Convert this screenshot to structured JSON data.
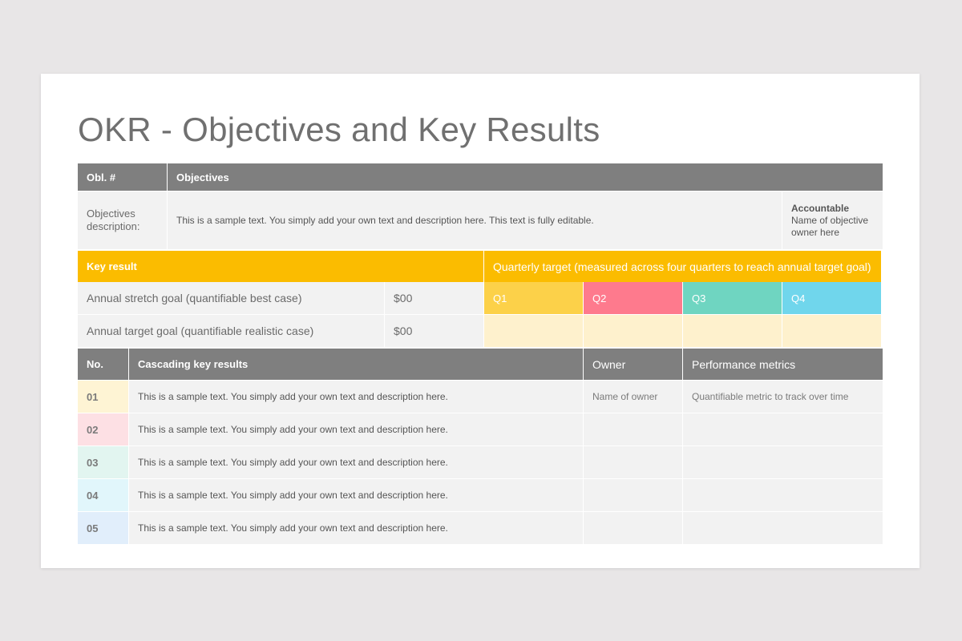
{
  "title": "OKR - Objectives and Key Results",
  "objectives": {
    "col_num_label": "Obl. #",
    "col_objectives_label": "Objectives",
    "description_label": "Objectives description:",
    "description_text": "This is a sample text. You simply add your own text and description here. This text is fully editable.",
    "accountable_title": "Accountable",
    "accountable_text": "Name of objective owner here"
  },
  "key_results": {
    "header_label": "Key result",
    "quarterly_label": "Quarterly target (measured across four quarters to reach annual target goal)",
    "quarters": [
      "Q1",
      "Q2",
      "Q3",
      "Q4"
    ],
    "rows": [
      {
        "label": "Annual stretch goal (quantifiable best case)",
        "value": "$00"
      },
      {
        "label": "Annual target goal (quantifiable realistic case)",
        "value": "$00"
      }
    ]
  },
  "cascading": {
    "col_no": "No.",
    "col_results": "Cascading key results",
    "col_owner": "Owner",
    "col_metrics": "Performance metrics",
    "rows": [
      {
        "no": "01",
        "text": "This is a sample text. You simply add your own text and description here.",
        "owner": "Name of owner",
        "metric": "Quantifiable metric to track over time"
      },
      {
        "no": "02",
        "text": "This is a sample text. You simply add your own text and description here.",
        "owner": "",
        "metric": ""
      },
      {
        "no": "03",
        "text": "This is a sample text. You simply add your own text and description here.",
        "owner": "",
        "metric": ""
      },
      {
        "no": "04",
        "text": "This is a sample text. You simply add your own text and description here.",
        "owner": "",
        "metric": ""
      },
      {
        "no": "05",
        "text": "This is a sample text. You simply add your own text and description here.",
        "owner": "",
        "metric": ""
      }
    ]
  },
  "colors": {
    "header_gray": "#7f7f7f",
    "key_result_yellow": "#fbbc00",
    "q1": "#fcd149",
    "q2": "#fe7a8d",
    "q3": "#6fd5c1",
    "q4": "#70d6ec"
  }
}
